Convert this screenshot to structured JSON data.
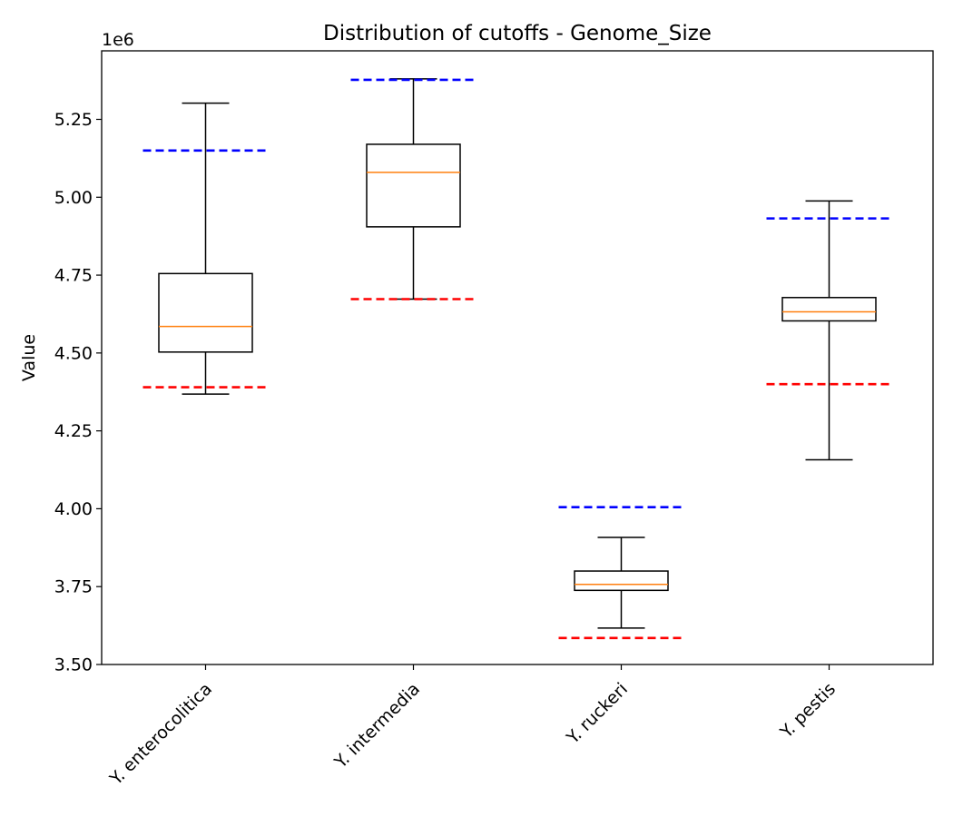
{
  "chart_data": {
    "type": "box",
    "title": "Distribution of cutoffs - Genome_Size",
    "ylabel": "Value",
    "xlabel": "",
    "offset_text": "1e6",
    "ylim": [
      3.5,
      5.47
    ],
    "yticks": [
      3.5,
      3.75,
      4.0,
      4.25,
      4.5,
      4.75,
      5.0,
      5.25
    ],
    "ytick_labels": [
      "3.50",
      "3.75",
      "4.00",
      "4.25",
      "4.50",
      "4.75",
      "5.00",
      "5.25"
    ],
    "categories": [
      "Y. enterocolitica",
      "Y. intermedia",
      "Y. ruckeri",
      "Y. pestis"
    ],
    "boxes": [
      {
        "whisker_low": 4.368,
        "q1": 4.503,
        "median": 4.585,
        "q3": 4.755,
        "whisker_high": 5.302,
        "cutoff_upper": 5.15,
        "cutoff_lower": 4.39
      },
      {
        "whisker_low": 4.673,
        "q1": 4.905,
        "median": 5.08,
        "q3": 5.17,
        "whisker_high": 5.38,
        "cutoff_upper": 5.377,
        "cutoff_lower": 4.673
      },
      {
        "whisker_low": 3.617,
        "q1": 3.738,
        "median": 3.757,
        "q3": 3.8,
        "whisker_high": 3.908,
        "cutoff_upper": 4.005,
        "cutoff_lower": 3.585
      },
      {
        "whisker_low": 4.157,
        "q1": 4.603,
        "median": 4.632,
        "q3": 4.678,
        "whisker_high": 4.988,
        "cutoff_upper": 4.932,
        "cutoff_lower": 4.4
      }
    ],
    "colors": {
      "box": "#000000",
      "median": "#ff7f0e",
      "upper_cutoff": "#0000ff",
      "lower_cutoff": "#ff0000"
    },
    "grid": false
  }
}
